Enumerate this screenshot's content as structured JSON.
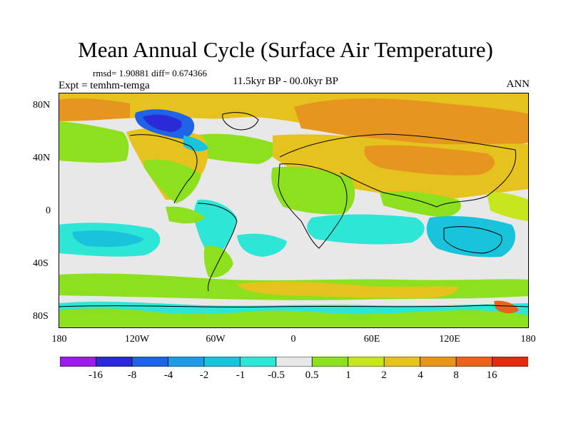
{
  "title": "Mean Annual Cycle (Surface Air Temperature)",
  "stats_text": "rmsd= 1.90881 diff= 0.674366",
  "expt_text": "Expt = temhm-temga",
  "center_text": "11.5kyr BP - 00.0kyr BP",
  "season_text": "ANN",
  "lat_ticks": [
    "80N",
    "40N",
    "0",
    "40S",
    "80S"
  ],
  "lon_ticks": [
    "180",
    "120W",
    "60W",
    "0",
    "60E",
    "120E",
    "180"
  ],
  "colorbar": {
    "labels": [
      "-16",
      "-8",
      "-4",
      "-2",
      "-1",
      "-0.5",
      "0.5",
      "1",
      "2",
      "4",
      "8",
      "16"
    ],
    "colors": [
      "#9a1ee6",
      "#2a2ad8",
      "#1f64e6",
      "#1f9be6",
      "#19c3dc",
      "#2ee6d6",
      "#e8e8e8",
      "#8ce01e",
      "#c8e61e",
      "#e6c21e",
      "#e6961e",
      "#e6641e",
      "#e02c10"
    ]
  },
  "colors": {
    "neutral": "#e8e8e8",
    "cool_light": "#2ee6d6",
    "cool_mid": "#19c3dc",
    "cold": "#1f64e6",
    "cold_deep": "#2a2ad8",
    "warm_light": "#8ce01e",
    "warm_mid": "#c8e61e",
    "warm": "#e6c21e",
    "hot": "#e6961e",
    "hotter": "#e6641e"
  }
}
